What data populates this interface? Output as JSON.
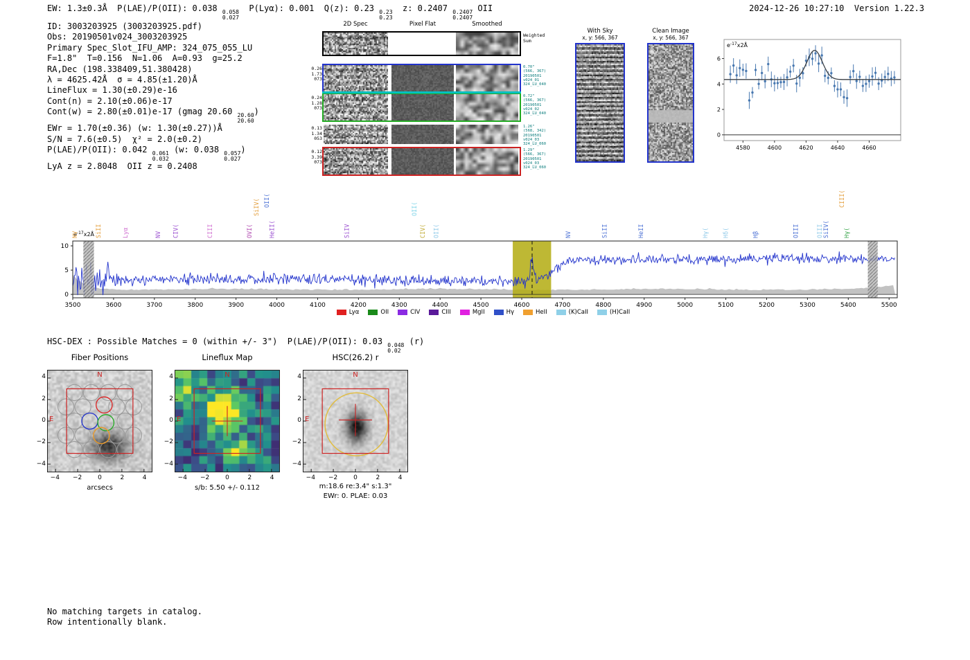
{
  "header": {
    "left_segments": [
      {
        "text": "EW: 1.3±0.3Å  P(LAE)/P(OII): 0.038 "
      },
      {
        "frac": [
          "0.058",
          "0.027"
        ]
      },
      {
        "text": "  P(Lyα): 0.001  Q(z): 0.23 "
      },
      {
        "frac": [
          "0.23",
          "0.23"
        ]
      },
      {
        "text": "  z: 0.2407 "
      },
      {
        "frac": [
          "0.2407",
          "0.2407"
        ]
      },
      {
        "text": " OII"
      }
    ],
    "timestamp": "2024-12-26 10:27:10",
    "version": "Version 1.22.3"
  },
  "info_lines": [
    [
      {
        "text": "ID: 3003203925 (3003203925.pdf)"
      }
    ],
    [
      {
        "text": "Obs: 20190501v024_3003203925"
      }
    ],
    [
      {
        "text": "Primary Spec_Slot_IFU_AMP: 324_075_055_LU"
      }
    ],
    [
      {
        "text": "F=1.8\"  T=0.156  N=1.06  A=0.93  g=25.2"
      }
    ],
    [
      {
        "text": "RA,Dec (198.338409,51.380428)"
      }
    ],
    [
      {
        "text": "λ = 4625.42Å  σ = 4.85(±1.20)Å"
      }
    ],
    [
      {
        "text": "LineFlux = 1.30(±0.29)e-16"
      }
    ],
    [
      {
        "text": "Cont(n) = 2.10(±0.06)e-17"
      }
    ],
    [
      {
        "text": "Cont(w) = 2.80(±0.01)e-17 (gmag 20.60 "
      },
      {
        "frac": [
          "20.60",
          "20.60"
        ]
      },
      {
        "text": ")"
      }
    ],
    [
      {
        "text": "EWr = 1.70(±0.36) (w: 1.30(±0.27))Å"
      }
    ],
    [
      {
        "text": "S/N = 7.6(±0.5)  χ² = 2.0(±0.2)"
      }
    ],
    [
      {
        "text": "P(LAE)/P(OII): 0.042 "
      },
      {
        "frac": [
          "0.061",
          "0.032"
        ]
      },
      {
        "text": " (w: 0.038 "
      },
      {
        "frac": [
          "0.057",
          "0.027"
        ]
      },
      {
        "text": ")"
      }
    ],
    [
      {
        "text": "LyA z = 2.8048  OII z = 0.2408"
      }
    ]
  ],
  "cutouts": {
    "col_headers": [
      "2D Spec",
      "Pixel Flat",
      "Smoothed"
    ],
    "weighted_label": "Weighted Sum",
    "rows": [
      {
        "border": "#000000",
        "weighted": true,
        "left": [],
        "right": []
      },
      {
        "border": "#2233cc",
        "left": [
          "0.26",
          "1.73",
          "073"
        ],
        "right": [
          "0.70\"",
          "(566, 367)",
          "20190501",
          "v024_01",
          "324_LU_040"
        ]
      },
      {
        "border": "#22aa22",
        "left": [
          "0.24",
          "1.28",
          "073"
        ],
        "right": [
          "0.72\"",
          "(566, 367)",
          "20190501",
          "v024_02",
          "324_LU_040"
        ]
      },
      {
        "border": "none",
        "left": [
          "0.13",
          "1.34",
          "053"
        ],
        "right": [
          "1.26\"",
          "(568, 342)",
          "20190501",
          "v024_03",
          "324_LU_060"
        ]
      },
      {
        "border": "#cc2222",
        "left": [
          "0.12",
          "3.39",
          "073"
        ],
        "right": [
          "1.29\"",
          "(566, 367)",
          "20190501",
          "v024_03",
          "324_LU_060"
        ]
      }
    ]
  },
  "sky_panels": [
    {
      "title": "With Sky",
      "subtitle": "x, y: 566, 367"
    },
    {
      "title": "Clean Image",
      "subtitle": "x, y: 566, 367"
    }
  ],
  "hscdex_segments": [
    {
      "text": "HSC-DEX : Possible Matches = 0 (within +/- 3\")  P(LAE)/P(OII): 0.03 "
    },
    {
      "frac": [
        "0.048",
        "0.02"
      ]
    },
    {
      "text": " (r)"
    }
  ],
  "panels": {
    "fiber": {
      "title": "Fiber Positions",
      "xlabel": "arcsecs",
      "x_ticks": [
        -4,
        -2,
        0,
        2,
        4
      ],
      "y_ticks": [
        4,
        2,
        0,
        -2,
        -4
      ],
      "north": "N",
      "east": "E"
    },
    "lineflux": {
      "title": "Lineflux Map",
      "caption": "s/b: 5.50 +/- 0.112",
      "x_ticks": [
        -4,
        -2,
        0,
        2,
        4
      ],
      "y_ticks": [
        4,
        2,
        0,
        -2,
        -4
      ],
      "north": "N",
      "east": "E"
    },
    "hsc": {
      "title": "HSC(26.2) r",
      "caption1": "m:18.6 re:3.4\" s:1.3\"",
      "caption2": "EWr: 0. PLAE: 0.03",
      "x_ticks": [
        -4,
        -2,
        0,
        2,
        4
      ],
      "y_ticks": [
        4,
        2,
        0,
        -2,
        -4
      ],
      "north": "N",
      "east": "E"
    }
  },
  "notes": [
    "No matching targets in catalog.",
    "Row intentionally blank."
  ],
  "chart_data": [
    {
      "id": "main_spectrum",
      "type": "line",
      "unit": {
        "prefix": "e",
        "exp": "-17",
        "suffix": "x2Å"
      },
      "xlim": [
        3500,
        5520
      ],
      "ylim": [
        -0.7,
        11.0
      ],
      "x_ticks": [
        3500,
        3600,
        3700,
        3800,
        3900,
        4000,
        4100,
        4200,
        4300,
        4400,
        4500,
        4600,
        4700,
        4800,
        4900,
        5000,
        5100,
        5200,
        5300,
        5400,
        5500
      ],
      "y_ticks": [
        0,
        5,
        10
      ],
      "seed": 20,
      "x_start": 3500,
      "x_end": 5515,
      "step": 2,
      "blue_continuum": 2.9,
      "red_continuum": 6.9,
      "line_center": 4625.42,
      "line_sigma": 4.85,
      "line_amplitude": 4.0,
      "line_color": "#2233cc",
      "error_band_color": "#c2c2c2",
      "highlight_band": {
        "range": [
          4578,
          4672
        ],
        "color": "#b3ab10",
        "opacity": 0.85
      },
      "marker_line": 4625.42,
      "hatch_bands": [
        [
          3526,
          3552
        ],
        [
          5448,
          5472
        ]
      ],
      "line_labels": [
        {
          "name": "NV",
          "wave": 3505,
          "color": "#e39e3c",
          "row": 0
        },
        {
          "name": "SiII",
          "wave": 3563,
          "color": "#e39e3c",
          "row": 0
        },
        {
          "name": "Lyα",
          "wave": 3629,
          "color": "#cf6fd0",
          "row": 0
        },
        {
          "name": "NV",
          "wave": 3709,
          "color": "#9a4fd0",
          "row": 0
        },
        {
          "name": "CIV(",
          "wave": 3752,
          "color": "#9a4fd0",
          "row": 0
        },
        {
          "name": "CIII",
          "wave": 3836,
          "color": "#d06fd0",
          "row": 0
        },
        {
          "name": "OVI(",
          "wave": 3933,
          "color": "#b048b0",
          "row": 0
        },
        {
          "name": "SiIV(",
          "wave": 3950,
          "color": "#e39e3c",
          "row": 1
        },
        {
          "name": "OII(",
          "wave": 3975,
          "color": "#4a6fd4",
          "row": 2
        },
        {
          "name": "HeII(",
          "wave": 3988,
          "color": "#9a4fd0",
          "row": 0
        },
        {
          "name": "SiIV",
          "wave": 4171,
          "color": "#9a4fd0",
          "row": 0
        },
        {
          "name": "OII(",
          "wave": 4337,
          "color": "#7fd4e8",
          "row": 1
        },
        {
          "name": "CIV(",
          "wave": 4357,
          "color": "#c3ad3a",
          "row": 0
        },
        {
          "name": "OII(",
          "wave": 4390,
          "color": "#8fc9e8",
          "row": 0
        },
        {
          "name": "NV",
          "wave": 4714,
          "color": "#4a6fd4",
          "row": 0
        },
        {
          "name": "SiII",
          "wave": 4803,
          "color": "#4a6fd4",
          "row": 0
        },
        {
          "name": "HeII",
          "wave": 4892,
          "color": "#4a6fd4",
          "row": 0
        },
        {
          "name": "Hγ(",
          "wave": 5050,
          "color": "#8fc9e8",
          "row": 0
        },
        {
          "name": "Hδ(",
          "wave": 5100,
          "color": "#8fc9e8",
          "row": 0
        },
        {
          "name": "Hβ",
          "wave": 5173,
          "color": "#4a6fd4",
          "row": 0
        },
        {
          "name": "OIII",
          "wave": 5271,
          "color": "#4a6fd4",
          "row": 0
        },
        {
          "name": "OIII",
          "wave": 5330,
          "color": "#8fc9e8",
          "row": 0
        },
        {
          "name": "SiIV(",
          "wave": 5345,
          "color": "#4a6fd4",
          "row": 0
        },
        {
          "name": "CIII(",
          "wave": 5384,
          "color": "#e39e3c",
          "row": 2
        },
        {
          "name": "Hγ(",
          "wave": 5396,
          "color": "#3aa64c",
          "row": 0
        }
      ],
      "legend": [
        {
          "label": "Lyα",
          "color": "#e02020"
        },
        {
          "label": "OII",
          "color": "#1a8a1a"
        },
        {
          "label": "CIV",
          "color": "#8a2be2"
        },
        {
          "label": "CIII",
          "color": "#5a1a9a"
        },
        {
          "label": "MgII",
          "color": "#e020e0"
        },
        {
          "label": "Hγ",
          "color": "#3050c8"
        },
        {
          "label": "HeII",
          "color": "#f0a030"
        },
        {
          "label": "(K)CaII",
          "color": "#8fd0e8"
        },
        {
          "label": "(H)CaII",
          "color": "#8fd0e8"
        }
      ]
    },
    {
      "id": "zoom_spectrum",
      "type": "scatter",
      "unit": {
        "prefix": "e",
        "exp": "-17",
        "suffix": "x2Å"
      },
      "xlim": [
        4568,
        4680
      ],
      "ylim": [
        -0.45,
        7.5
      ],
      "x_ticks": [
        4580,
        4600,
        4620,
        4640,
        4660
      ],
      "y_ticks": [
        0,
        2,
        4,
        6
      ],
      "seed": 42,
      "x_start": 4572,
      "x_end": 4676,
      "step": 2,
      "noise_sigma": 0.5,
      "fit": {
        "continuum": 4.35,
        "center": 4625.42,
        "sigma": 4.85,
        "amplitude": 2.3
      },
      "colors": {
        "points": "#4878b0",
        "fit": "#3a3f45"
      }
    },
    {
      "id": "lineflux_map",
      "type": "heatmap",
      "palette": "viridis"
    },
    {
      "id": "fiber_map",
      "type": "scatter",
      "gray": [
        [
          -2.29,
          2.65
        ],
        [
          -0.76,
          2.65
        ],
        [
          0.76,
          2.65
        ],
        [
          2.29,
          2.65
        ],
        [
          -3.06,
          1.32
        ],
        [
          -1.53,
          1.32
        ],
        [
          1.53,
          1.32
        ],
        [
          3.06,
          1.32
        ],
        [
          -2.29,
          0
        ],
        [
          2.29,
          0
        ],
        [
          -3.06,
          -1.32
        ],
        [
          -1.53,
          -1.32
        ],
        [
          1.53,
          -1.32
        ],
        [
          3.06,
          -1.32
        ],
        [
          -2.29,
          -2.65
        ],
        [
          -0.76,
          -2.65
        ],
        [
          0.76,
          -2.65
        ],
        [
          2.29,
          -2.65
        ]
      ],
      "colored": [
        {
          "x": 0.4,
          "y": 1.5,
          "color": "#dd2222"
        },
        {
          "x": -0.9,
          "y": 0.0,
          "color": "#2233cc"
        },
        {
          "x": 0.55,
          "y": -0.15,
          "color": "#22aa22"
        },
        {
          "x": 0.15,
          "y": -1.35,
          "color": "#ee9922"
        }
      ]
    }
  ]
}
